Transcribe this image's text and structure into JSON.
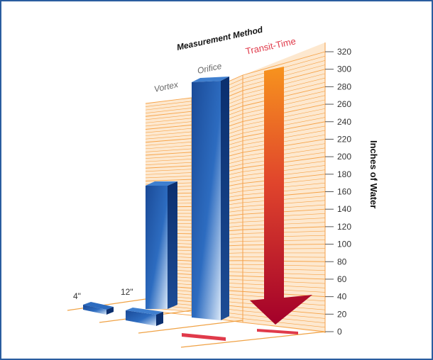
{
  "chart_data": {
    "type": "bar",
    "title": "Measurement Method",
    "ylabel": "Inches of Water",
    "ylim": [
      0,
      320
    ],
    "yticks": [
      "0",
      "20",
      "40",
      "60",
      "80",
      "100",
      "120",
      "140",
      "160",
      "180",
      "200",
      "220",
      "240",
      "260",
      "280",
      "300",
      "320"
    ],
    "categories": [
      "Vortex",
      "Orifice",
      "Transit-Time"
    ],
    "pipe_sizes": [
      "4\"",
      "12\""
    ],
    "series": [
      {
        "name": "4\"",
        "values": [
          5,
          0,
          0
        ]
      },
      {
        "name": "12\"",
        "values": [
          20,
          300,
          3
        ]
      }
    ],
    "colors": {
      "bar": "#1f4e9a",
      "grid": "#f6a348",
      "gridBg": "#fde8cf",
      "transit": "#e03a4a",
      "arrowTop": "#f7931e",
      "arrowBottom": "#a3002a"
    }
  }
}
